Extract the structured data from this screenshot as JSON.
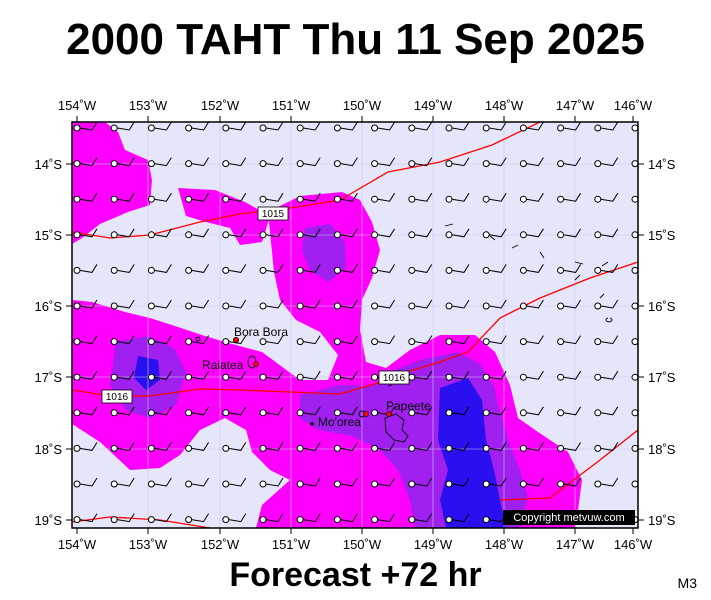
{
  "title": "2000 TAHT Thu 11 Sep 2025",
  "footer_label": "Forecast +72 hr",
  "model_code": "M3",
  "copyright": "Copyright metvuw.com",
  "axes": {
    "longitude_ticks": [
      "154˚W",
      "153˚W",
      "152˚W",
      "151˚W",
      "150˚W",
      "149˚W",
      "148˚W",
      "147˚W",
      "146˚W"
    ],
    "latitude_ticks": [
      "14˚S",
      "15˚S",
      "16˚S",
      "17˚S",
      "18˚S",
      "19˚S"
    ]
  },
  "places": [
    {
      "id": "bora-bora",
      "name": "Bora Bora"
    },
    {
      "id": "raiatea",
      "name": "Raiatea"
    },
    {
      "id": "moorea",
      "name": "Mo'orea"
    },
    {
      "id": "papeete",
      "name": "Papeete"
    }
  ],
  "isobars": [
    {
      "id": "isobar-1015",
      "label": "1015"
    },
    {
      "id": "isobar-1016-west",
      "label": "1016"
    },
    {
      "id": "isobar-1016-east",
      "label": "1016"
    }
  ],
  "colors": {
    "background": "#e6e6fa",
    "rain_light": "#ff00ff",
    "rain_medium": "#a020f0",
    "rain_heavy": "#0000ff",
    "isobar": "#ff0000"
  }
}
